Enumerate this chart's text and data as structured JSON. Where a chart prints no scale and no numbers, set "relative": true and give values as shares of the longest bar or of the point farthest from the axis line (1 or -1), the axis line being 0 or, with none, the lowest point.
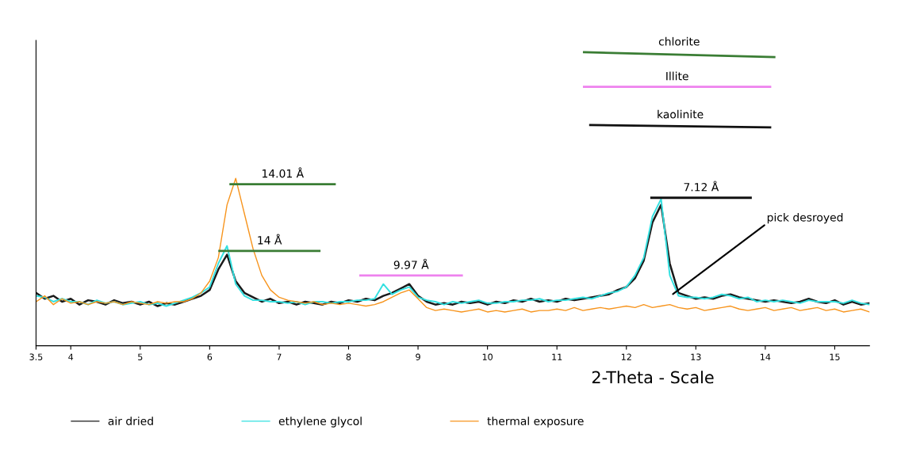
{
  "chart_data": {
    "type": "line",
    "relative": true,
    "xlabel": "2-Theta - Scale",
    "xlim": [
      3.5,
      15.5
    ],
    "xticks": [
      3.5,
      4,
      5,
      6,
      7,
      8,
      9,
      10,
      11,
      12,
      13,
      14,
      15
    ],
    "x": [
      3.5,
      3.625,
      3.75,
      3.875,
      4.0,
      4.125,
      4.25,
      4.375,
      4.5,
      4.625,
      4.75,
      4.875,
      5.0,
      5.125,
      5.25,
      5.375,
      5.5,
      5.625,
      5.75,
      5.875,
      6.0,
      6.125,
      6.25,
      6.375,
      6.5,
      6.625,
      6.75,
      6.875,
      7.0,
      7.125,
      7.25,
      7.375,
      7.5,
      7.625,
      7.75,
      7.875,
      8.0,
      8.125,
      8.25,
      8.375,
      8.5,
      8.625,
      8.75,
      8.875,
      9.0,
      9.125,
      9.25,
      9.375,
      9.5,
      9.625,
      9.75,
      9.875,
      10.0,
      10.125,
      10.25,
      10.375,
      10.5,
      10.625,
      10.75,
      10.875,
      11.0,
      11.125,
      11.25,
      11.375,
      11.5,
      11.625,
      11.75,
      11.875,
      12.0,
      12.125,
      12.25,
      12.375,
      12.5,
      12.625,
      12.75,
      12.875,
      13.0,
      13.125,
      13.25,
      13.375,
      13.5,
      13.625,
      13.75,
      13.875,
      14.0,
      14.125,
      14.25,
      14.375,
      14.5,
      14.625,
      14.75,
      14.875,
      15.0,
      15.125,
      15.25,
      15.375,
      15.5
    ],
    "series": [
      {
        "name": "air dried",
        "color": "#1a1a1a",
        "values": [
          0.18,
          0.16,
          0.17,
          0.15,
          0.16,
          0.14,
          0.155,
          0.15,
          0.14,
          0.155,
          0.145,
          0.15,
          0.14,
          0.15,
          0.135,
          0.145,
          0.14,
          0.15,
          0.16,
          0.17,
          0.19,
          0.26,
          0.31,
          0.22,
          0.18,
          0.165,
          0.15,
          0.16,
          0.145,
          0.15,
          0.14,
          0.15,
          0.145,
          0.14,
          0.15,
          0.145,
          0.155,
          0.15,
          0.16,
          0.155,
          0.17,
          0.18,
          0.195,
          0.21,
          0.17,
          0.15,
          0.14,
          0.145,
          0.14,
          0.15,
          0.145,
          0.15,
          0.14,
          0.15,
          0.145,
          0.155,
          0.15,
          0.16,
          0.15,
          0.155,
          0.15,
          0.16,
          0.155,
          0.16,
          0.165,
          0.17,
          0.175,
          0.19,
          0.2,
          0.23,
          0.29,
          0.42,
          0.48,
          0.28,
          0.18,
          0.17,
          0.16,
          0.165,
          0.16,
          0.17,
          0.175,
          0.165,
          0.16,
          0.155,
          0.15,
          0.155,
          0.15,
          0.145,
          0.15,
          0.16,
          0.15,
          0.145,
          0.155,
          0.14,
          0.15,
          0.14,
          0.145
        ]
      },
      {
        "name": "ethylene glycol",
        "color": "#33e0e0",
        "values": [
          0.17,
          0.165,
          0.15,
          0.16,
          0.15,
          0.15,
          0.14,
          0.155,
          0.145,
          0.15,
          0.14,
          0.145,
          0.15,
          0.14,
          0.145,
          0.135,
          0.145,
          0.155,
          0.165,
          0.18,
          0.2,
          0.28,
          0.34,
          0.21,
          0.17,
          0.155,
          0.155,
          0.15,
          0.15,
          0.145,
          0.15,
          0.14,
          0.15,
          0.15,
          0.145,
          0.15,
          0.15,
          0.155,
          0.155,
          0.16,
          0.21,
          0.175,
          0.19,
          0.2,
          0.165,
          0.155,
          0.15,
          0.14,
          0.15,
          0.145,
          0.15,
          0.155,
          0.145,
          0.145,
          0.15,
          0.15,
          0.155,
          0.155,
          0.16,
          0.15,
          0.155,
          0.155,
          0.16,
          0.165,
          0.16,
          0.17,
          0.18,
          0.185,
          0.2,
          0.24,
          0.3,
          0.44,
          0.5,
          0.24,
          0.17,
          0.165,
          0.165,
          0.16,
          0.165,
          0.175,
          0.17,
          0.16,
          0.165,
          0.15,
          0.155,
          0.15,
          0.155,
          0.15,
          0.145,
          0.155,
          0.15,
          0.15,
          0.15,
          0.145,
          0.155,
          0.145,
          0.14
        ]
      },
      {
        "name": "thermal exposure",
        "color": "#f7941d",
        "values": [
          0.15,
          0.17,
          0.14,
          0.16,
          0.145,
          0.15,
          0.14,
          0.15,
          0.145,
          0.15,
          0.14,
          0.15,
          0.145,
          0.14,
          0.15,
          0.145,
          0.15,
          0.15,
          0.16,
          0.18,
          0.22,
          0.3,
          0.48,
          0.57,
          0.45,
          0.33,
          0.24,
          0.19,
          0.165,
          0.155,
          0.15,
          0.145,
          0.15,
          0.14,
          0.145,
          0.14,
          0.145,
          0.14,
          0.135,
          0.14,
          0.15,
          0.165,
          0.18,
          0.19,
          0.16,
          0.13,
          0.12,
          0.125,
          0.12,
          0.115,
          0.12,
          0.125,
          0.115,
          0.12,
          0.115,
          0.12,
          0.125,
          0.115,
          0.12,
          0.12,
          0.125,
          0.12,
          0.13,
          0.12,
          0.125,
          0.13,
          0.125,
          0.13,
          0.135,
          0.13,
          0.14,
          0.13,
          0.135,
          0.14,
          0.13,
          0.125,
          0.13,
          0.12,
          0.125,
          0.13,
          0.135,
          0.125,
          0.12,
          0.125,
          0.13,
          0.12,
          0.125,
          0.13,
          0.12,
          0.125,
          0.13,
          0.12,
          0.125,
          0.115,
          0.12,
          0.125,
          0.115
        ]
      },
      {
        "name": "14.01 Å",
        "color": "#3a7d34",
        "x": [
          6.3,
          7.8
        ],
        "values": [
          0.55,
          0.55
        ]
      },
      {
        "name": "14 Å",
        "color": "#3a7d34",
        "x": [
          6.14,
          7.58
        ],
        "values": [
          0.323,
          0.323
        ]
      },
      {
        "name": "9.97 Å",
        "color": "#ee82ee",
        "x": [
          8.17,
          9.63
        ],
        "values": [
          0.239,
          0.239
        ]
      },
      {
        "name": "7.12 Å",
        "color": "#111111",
        "x": [
          12.36,
          13.79
        ],
        "values": [
          0.504,
          0.504
        ]
      },
      {
        "name": "chlorite",
        "color": "#3a7d34",
        "x": [
          11.39,
          14.13
        ],
        "values": [
          1.0,
          0.983
        ]
      },
      {
        "name": "Illite",
        "color": "#ee82ee",
        "x": [
          11.39,
          14.07
        ],
        "values": [
          0.882,
          0.882
        ]
      },
      {
        "name": "kaolinite",
        "color": "#111111",
        "x": [
          11.48,
          14.07
        ],
        "values": [
          0.752,
          0.744
        ]
      }
    ],
    "annotations": [
      {
        "text": "pick desroyed",
        "x": 12.67,
        "y": 0.176
      }
    ],
    "legend": "bottom"
  }
}
